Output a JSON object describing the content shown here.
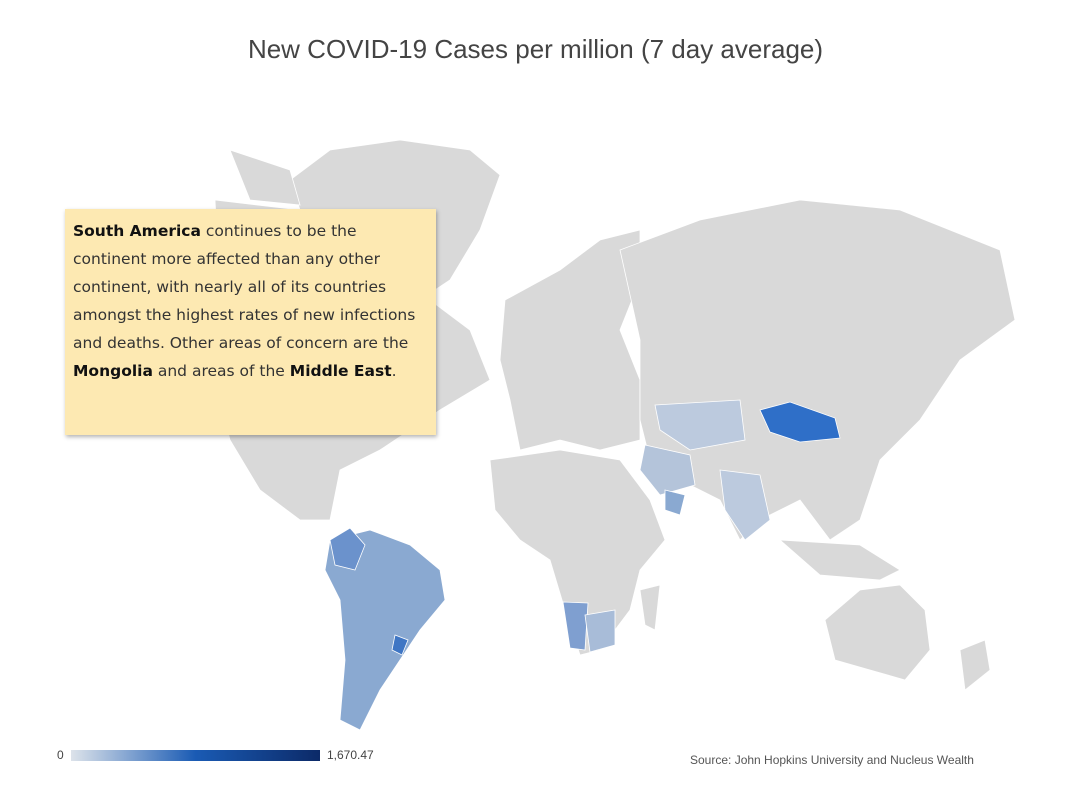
{
  "title": "New COVID-19 Cases per million (7 day average)",
  "annotation": [
    {
      "text": "South America",
      "bold": true
    },
    {
      "text": " continues to be the continent  more affected  than any other continent, with nearly all of its countries amongst the highest rates of new infections and deaths. Other areas of concern are the ",
      "bold": false
    },
    {
      "text": "Mongolia",
      "bold": true
    },
    {
      "text": " and areas of the ",
      "bold": false
    },
    {
      "text": "Middle East",
      "bold": true
    },
    {
      "text": ".",
      "bold": false
    }
  ],
  "legend": {
    "min": 0,
    "max": {
      "value": 1670.47,
      "label": "1,670.47"
    }
  },
  "source": "Source: John Hopkins University and Nucleus Wealth"
}
